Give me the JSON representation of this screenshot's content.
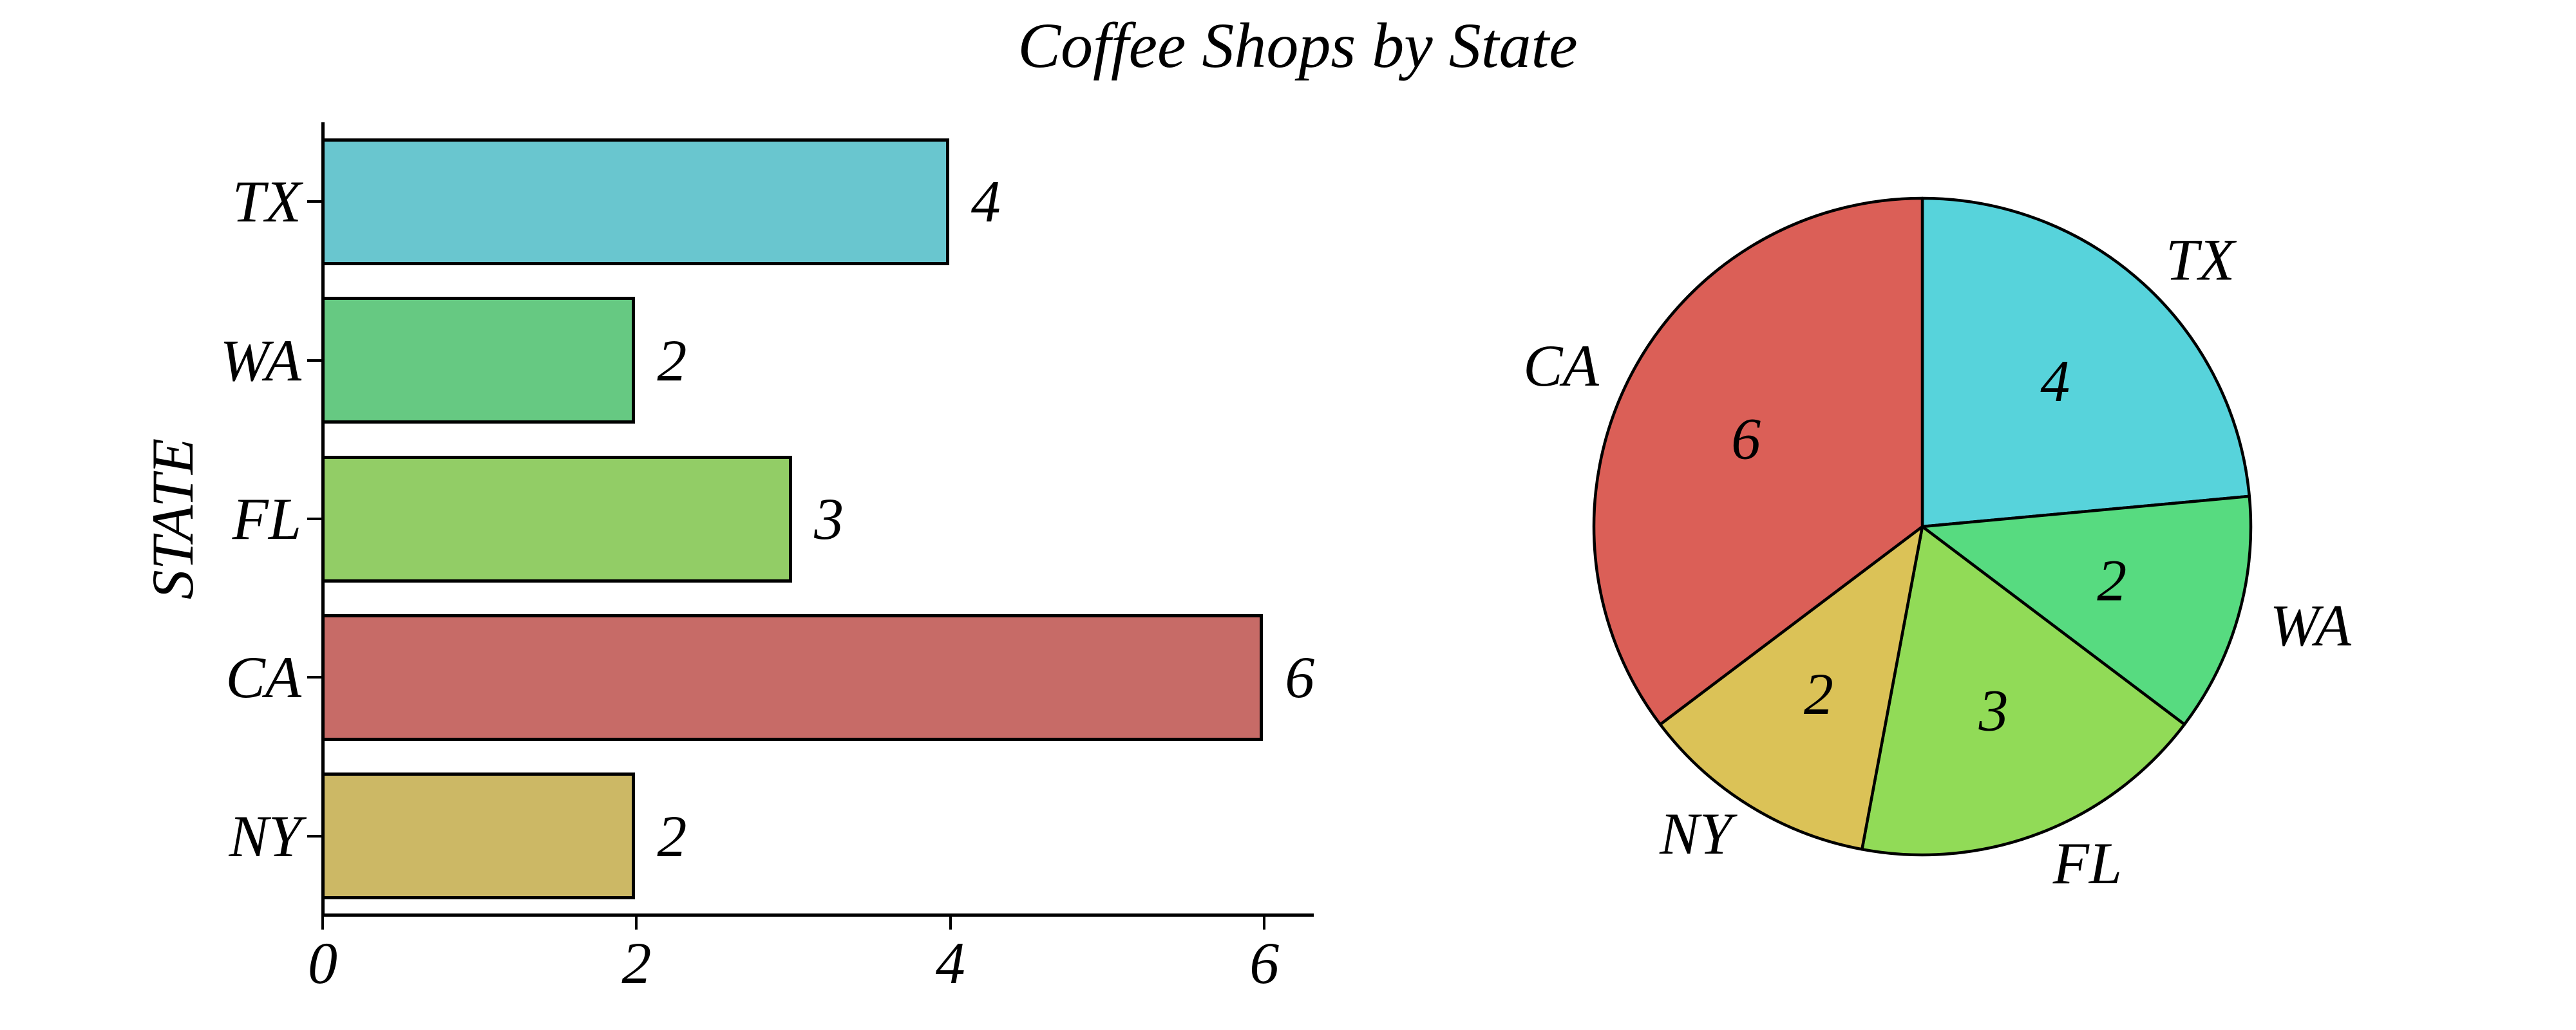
{
  "title": "Coffee Shops by State",
  "chart_data": [
    {
      "type": "bar",
      "orientation": "horizontal",
      "title": "Coffee Shops by State",
      "categories": [
        "TX",
        "WA",
        "FL",
        "CA",
        "NY"
      ],
      "values": [
        4,
        2,
        3,
        6,
        2
      ],
      "bar_labels": [
        "4",
        "2",
        "3",
        "6",
        "2"
      ],
      "bar_colors": [
        "#69C6CF",
        "#66C982",
        "#92CD66",
        "#C76B67",
        "#CCB865"
      ],
      "xlabel": "",
      "ylabel": "STATE",
      "xticks": [
        "0",
        "2",
        "4",
        "6"
      ],
      "xtick_values": [
        0,
        2,
        4,
        6
      ],
      "xlim": [
        0,
        6.32
      ],
      "grid": false,
      "legend": false,
      "edge_color": "#000000"
    },
    {
      "type": "pie",
      "labels": [
        "TX",
        "WA",
        "FL",
        "NY",
        "CA"
      ],
      "values": [
        4,
        2,
        3,
        2,
        6
      ],
      "value_labels": [
        "4",
        "2",
        "3",
        "2",
        "6"
      ],
      "colors": [
        "#57D3DB",
        "#57DB80",
        "#91DB57",
        "#DBC257",
        "#DB5F57"
      ],
      "start_angle_deg": 90,
      "direction": "clockwise",
      "label_distance": 1.1,
      "value_distance": 0.6,
      "edge_color": "#000000"
    }
  ]
}
